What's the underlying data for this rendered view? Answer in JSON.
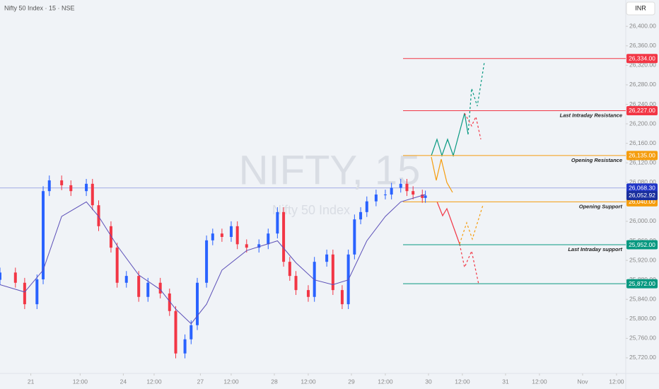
{
  "chart_data": {
    "type": "candlestick",
    "title": "Nifty 50 Index · 15 · NSE",
    "watermark": "NIFTY, 15",
    "watermark_subtitle": "Nifty 50 Index",
    "currency": "INR",
    "x": [
      -10,
      -5,
      -2,
      2,
      4,
      6,
      10,
      13,
      18,
      20,
      22,
      26,
      28,
      31,
      35,
      38,
      42,
      45,
      47,
      50,
      52,
      54,
      57,
      59,
      62,
      65,
      67,
      70,
      74,
      77,
      80,
      82,
      84,
      86,
      90,
      92,
      96,
      98,
      101,
      103,
      105,
      107,
      109,
      112,
      115,
      117,
      120,
      122,
      124,
      127,
      128
    ],
    "open": [
      25880,
      25895,
      25874,
      25830,
      25881,
      26062,
      26084,
      26074,
      26062,
      26077,
      26033,
      25990,
      25946,
      25874,
      25888,
      25845,
      25874,
      25852,
      25816,
      25729,
      25758,
      25787,
      25874,
      25961,
      25975,
      25968,
      25990,
      25953,
      25946,
      25953,
      25975,
      26019,
      25917,
      25888,
      25859,
      25845,
      25917,
      25932,
      25859,
      25830,
      25932,
      26004,
      26019,
      26041,
      26055,
      26055,
      26069,
      26077,
      26062,
      26055,
      26048
    ],
    "high": [
      25905,
      25905,
      25884,
      25891,
      26072,
      26094,
      26094,
      26084,
      26087,
      26087,
      26043,
      26000,
      25956,
      25898,
      25898,
      25884,
      25884,
      25862,
      25826,
      25768,
      25797,
      25884,
      25971,
      25985,
      25985,
      26000,
      26000,
      25963,
      25963,
      25985,
      26029,
      26029,
      25927,
      25898,
      25869,
      25927,
      25942,
      25942,
      25869,
      25942,
      26014,
      26029,
      26051,
      26065,
      26065,
      26079,
      26087,
      26087,
      26072,
      26065,
      26063
    ],
    "low": [
      25870,
      25864,
      25820,
      25820,
      25871,
      26052,
      26064,
      26052,
      26052,
      26023,
      25980,
      25936,
      25864,
      25864,
      25835,
      25835,
      25842,
      25806,
      25719,
      25719,
      25748,
      25777,
      25864,
      25951,
      25958,
      25958,
      25943,
      25936,
      25936,
      25943,
      25965,
      25907,
      25878,
      25849,
      25835,
      25835,
      25907,
      25849,
      25820,
      25820,
      25922,
      25994,
      26009,
      26031,
      26045,
      26045,
      26059,
      26052,
      26045,
      26038,
      26038
    ],
    "close": [
      25895,
      25874,
      25830,
      25881,
      26062,
      26084,
      26074,
      26062,
      26077,
      26033,
      25990,
      25946,
      25874,
      25888,
      25845,
      25874,
      25852,
      25816,
      25729,
      25758,
      25787,
      25874,
      25961,
      25975,
      25968,
      25990,
      25953,
      25946,
      25953,
      25975,
      26019,
      25917,
      25888,
      25859,
      25845,
      25917,
      25932,
      25859,
      25830,
      25932,
      26004,
      26019,
      26041,
      26055,
      26055,
      26069,
      26077,
      26062,
      26055,
      26048,
      26052.92
    ],
    "up_color": "#2962ff",
    "down_color": "#f23645",
    "ma": {
      "color": "#5b4fb8",
      "x": [
        -10,
        -2,
        4,
        10,
        18,
        22,
        28,
        35,
        42,
        47,
        52,
        57,
        62,
        70,
        80,
        86,
        92,
        98,
        103,
        109,
        115,
        120,
        128
      ],
      "values": [
        25870,
        25855,
        25900,
        26010,
        26040,
        26010,
        25950,
        25890,
        25860,
        25820,
        25790,
        25830,
        25900,
        25940,
        25960,
        25915,
        25880,
        25870,
        25880,
        25960,
        26010,
        26040,
        26055
      ]
    },
    "levels": [
      {
        "value": 26334,
        "label": "26,334.00",
        "color": "#f23645"
      },
      {
        "value": 26227,
        "label": "26,227.00",
        "color": "#f23645",
        "name": "Last Intraday Resistance"
      },
      {
        "value": 26135,
        "label": "26,135.00",
        "color": "#f59d0e",
        "name": "Opening Resistance"
      },
      {
        "value": 26040,
        "label": "26,040.00",
        "color": "#f59d0e",
        "name": "Opening Support"
      },
      {
        "value": 25952,
        "label": "25,952.00",
        "color": "#089981",
        "name": "Last Intraday support"
      },
      {
        "value": 25872,
        "label": "25,872.00",
        "color": "#089981"
      }
    ],
    "price_line": {
      "value": 26068.3,
      "label": "26,068.30",
      "color": "#2035c7"
    },
    "current_price": {
      "value": 26052.92,
      "label": "26,052.92",
      "color": "#1a2f9e"
    },
    "ylim": [
      25688,
      26454
    ],
    "yticks": [
      {
        "value": 25720,
        "label": "25,720.00"
      },
      {
        "value": 25760,
        "label": "25,760.00"
      },
      {
        "value": 25800,
        "label": "25,800.00"
      },
      {
        "value": 25840,
        "label": "25,840.00"
      },
      {
        "value": 25880,
        "label": "25,880.00"
      },
      {
        "value": 25920,
        "label": "25,920.00"
      },
      {
        "value": 25960,
        "label": "25,960.00"
      },
      {
        "value": 26000,
        "label": "26,000.00"
      },
      {
        "value": 26040,
        "label": "26,040.00"
      },
      {
        "value": 26080,
        "label": "26,080.00"
      },
      {
        "value": 26120,
        "label": "26,120.00"
      },
      {
        "value": 26160,
        "label": "26,160.00"
      },
      {
        "value": 26200,
        "label": "26,200.00"
      },
      {
        "value": 26240,
        "label": "26,240.00"
      },
      {
        "value": 26280,
        "label": "26,280.00"
      },
      {
        "value": 26320,
        "label": "26,320.00"
      },
      {
        "value": 26360,
        "label": "26,360.00"
      },
      {
        "value": 26400,
        "label": "26,400.00"
      }
    ],
    "xlim": [
      -10,
      193
    ],
    "xticks": [
      {
        "value": 0,
        "label": "21"
      },
      {
        "value": 16,
        "label": "12:00"
      },
      {
        "value": 30,
        "label": "24"
      },
      {
        "value": 40,
        "label": "12:00"
      },
      {
        "value": 55,
        "label": "27"
      },
      {
        "value": 65,
        "label": "12:00"
      },
      {
        "value": 79,
        "label": "28"
      },
      {
        "value": 90,
        "label": "12:00"
      },
      {
        "value": 104,
        "label": "29"
      },
      {
        "value": 115,
        "label": "12:00"
      },
      {
        "value": 129,
        "label": "30"
      },
      {
        "value": 140,
        "label": "12:00"
      },
      {
        "value": 154,
        "label": "31"
      },
      {
        "value": 165,
        "label": "12:00"
      },
      {
        "value": 179,
        "label": "Nov"
      },
      {
        "value": 190,
        "label": "12:00"
      }
    ]
  }
}
